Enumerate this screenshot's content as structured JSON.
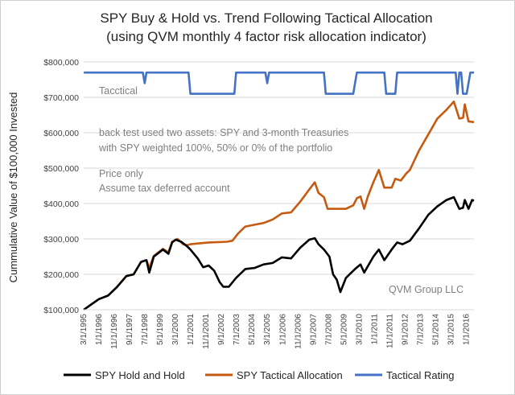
{
  "chart_data": {
    "type": "line",
    "title_lines": [
      "SPY Buy & Hold vs. Trend Following Tactical Allocation",
      "(using QVM monthly 4 factor risk allocation indicator)"
    ],
    "ylabel": "Cummulative Value of $100,000 Invested",
    "ylim": [
      100000,
      800000
    ],
    "y_ticks": [
      "$100,000",
      "$200,000",
      "$300,000",
      "$400,000",
      "$500,000",
      "$600,000",
      "$700,000",
      "$800,000"
    ],
    "y_tick_values": [
      100000,
      200000,
      300000,
      400000,
      500000,
      600000,
      700000,
      800000
    ],
    "x_start": 1995.167,
    "x_end": 2016.5,
    "x_ticks": [
      "3/1/1995",
      "1/1/1996",
      "11/1/1996",
      "9/1/1997",
      "7/1/1998",
      "5/1/1999",
      "3/1/2000",
      "1/1/2001",
      "11/1/2001",
      "9/1/2002",
      "7/1/2003",
      "5/1/2004",
      "3/1/2005",
      "1/1/2006",
      "11/1/2006",
      "9/1/2007",
      "7/1/2008",
      "5/1/2009",
      "3/1/2010",
      "1/1/2011",
      "11/1/2011",
      "9/1/2012",
      "7/1/2013",
      "5/1/2014",
      "3/1/2015",
      "1/1/2016"
    ],
    "legend_position": "bottom",
    "annotations": {
      "tactical_label": "Tacctical",
      "backtest_line1": "back test used two assets: SPY and 3-month Treasuries",
      "backtest_line2": "with SPY weighted 100%, 50% or 0% of the portfolio",
      "price_line1": "Price only",
      "price_line2": "Assume tax deferred account",
      "credit": "QVM Group LLC"
    },
    "series": [
      {
        "name": "SPY Hold and Hold",
        "color": "#000000",
        "points": [
          [
            1995.17,
            100000
          ],
          [
            1995.5,
            112000
          ],
          [
            1996.0,
            130000
          ],
          [
            1996.5,
            140000
          ],
          [
            1997.0,
            165000
          ],
          [
            1997.5,
            195000
          ],
          [
            1997.9,
            200000
          ],
          [
            1998.3,
            235000
          ],
          [
            1998.6,
            240000
          ],
          [
            1998.75,
            205000
          ],
          [
            1999.0,
            250000
          ],
          [
            1999.5,
            270000
          ],
          [
            1999.8,
            258000
          ],
          [
            2000.0,
            290000
          ],
          [
            2000.2,
            298000
          ],
          [
            2000.5,
            292000
          ],
          [
            2000.8,
            280000
          ],
          [
            2001.0,
            270000
          ],
          [
            2001.4,
            245000
          ],
          [
            2001.7,
            220000
          ],
          [
            2002.0,
            225000
          ],
          [
            2002.3,
            210000
          ],
          [
            2002.6,
            178000
          ],
          [
            2002.8,
            165000
          ],
          [
            2003.1,
            165000
          ],
          [
            2003.5,
            190000
          ],
          [
            2004.0,
            215000
          ],
          [
            2004.5,
            218000
          ],
          [
            2005.0,
            228000
          ],
          [
            2005.5,
            232000
          ],
          [
            2006.0,
            248000
          ],
          [
            2006.5,
            245000
          ],
          [
            2007.0,
            275000
          ],
          [
            2007.5,
            298000
          ],
          [
            2007.8,
            302000
          ],
          [
            2008.0,
            285000
          ],
          [
            2008.3,
            270000
          ],
          [
            2008.6,
            250000
          ],
          [
            2008.8,
            200000
          ],
          [
            2009.0,
            185000
          ],
          [
            2009.2,
            150000
          ],
          [
            2009.5,
            190000
          ],
          [
            2010.0,
            215000
          ],
          [
            2010.3,
            228000
          ],
          [
            2010.5,
            205000
          ],
          [
            2011.0,
            250000
          ],
          [
            2011.3,
            270000
          ],
          [
            2011.6,
            240000
          ],
          [
            2012.0,
            270000
          ],
          [
            2012.3,
            290000
          ],
          [
            2012.6,
            285000
          ],
          [
            2013.0,
            295000
          ],
          [
            2013.5,
            330000
          ],
          [
            2014.0,
            368000
          ],
          [
            2014.5,
            392000
          ],
          [
            2015.0,
            410000
          ],
          [
            2015.4,
            418000
          ],
          [
            2015.7,
            385000
          ],
          [
            2015.9,
            388000
          ],
          [
            2016.0,
            410000
          ],
          [
            2016.2,
            385000
          ],
          [
            2016.4,
            410000
          ],
          [
            2016.5,
            408000
          ]
        ]
      },
      {
        "name": "SPY Tactical Allocation",
        "color": "#c55a11",
        "points": [
          [
            1995.17,
            100000
          ],
          [
            1995.5,
            112000
          ],
          [
            1996.0,
            130000
          ],
          [
            1996.5,
            140000
          ],
          [
            1997.0,
            165000
          ],
          [
            1997.5,
            195000
          ],
          [
            1997.9,
            200000
          ],
          [
            1998.3,
            235000
          ],
          [
            1998.6,
            240000
          ],
          [
            1998.75,
            218000
          ],
          [
            1999.0,
            252000
          ],
          [
            1999.5,
            272000
          ],
          [
            1999.8,
            262000
          ],
          [
            2000.0,
            292000
          ],
          [
            2000.3,
            300000
          ],
          [
            2000.6,
            285000
          ],
          [
            2000.8,
            282000
          ],
          [
            2001.0,
            285000
          ],
          [
            2002.0,
            290000
          ],
          [
            2003.0,
            292000
          ],
          [
            2003.3,
            295000
          ],
          [
            2003.6,
            315000
          ],
          [
            2004.0,
            335000
          ],
          [
            2004.5,
            340000
          ],
          [
            2005.0,
            345000
          ],
          [
            2005.5,
            355000
          ],
          [
            2006.0,
            372000
          ],
          [
            2006.5,
            375000
          ],
          [
            2007.0,
            405000
          ],
          [
            2007.5,
            440000
          ],
          [
            2007.8,
            460000
          ],
          [
            2008.0,
            430000
          ],
          [
            2008.3,
            418000
          ],
          [
            2008.5,
            385000
          ],
          [
            2009.0,
            385000
          ],
          [
            2009.5,
            385000
          ],
          [
            2009.9,
            395000
          ],
          [
            2010.1,
            415000
          ],
          [
            2010.3,
            420000
          ],
          [
            2010.5,
            385000
          ],
          [
            2010.7,
            420000
          ],
          [
            2011.0,
            460000
          ],
          [
            2011.3,
            495000
          ],
          [
            2011.6,
            445000
          ],
          [
            2012.0,
            445000
          ],
          [
            2012.2,
            470000
          ],
          [
            2012.5,
            465000
          ],
          [
            2012.8,
            485000
          ],
          [
            2013.0,
            495000
          ],
          [
            2013.5,
            550000
          ],
          [
            2014.0,
            595000
          ],
          [
            2014.5,
            640000
          ],
          [
            2015.0,
            665000
          ],
          [
            2015.4,
            688000
          ],
          [
            2015.7,
            640000
          ],
          [
            2015.9,
            642000
          ],
          [
            2016.0,
            680000
          ],
          [
            2016.2,
            632000
          ],
          [
            2016.5,
            630000
          ]
        ]
      },
      {
        "name": "Tactical Rating",
        "color": "#4472c4",
        "points": [
          [
            1995.17,
            770000
          ],
          [
            1998.4,
            770000
          ],
          [
            1998.5,
            740000
          ],
          [
            1998.6,
            770000
          ],
          [
            2000.9,
            770000
          ],
          [
            2001.0,
            710000
          ],
          [
            2003.4,
            710000
          ],
          [
            2003.5,
            770000
          ],
          [
            2005.1,
            770000
          ],
          [
            2005.2,
            740000
          ],
          [
            2005.3,
            770000
          ],
          [
            2008.3,
            770000
          ],
          [
            2008.4,
            710000
          ],
          [
            2009.9,
            710000
          ],
          [
            2010.0,
            740000
          ],
          [
            2010.1,
            770000
          ],
          [
            2011.6,
            770000
          ],
          [
            2011.7,
            710000
          ],
          [
            2012.2,
            710000
          ],
          [
            2012.3,
            770000
          ],
          [
            2015.5,
            770000
          ],
          [
            2015.6,
            710000
          ],
          [
            2015.7,
            770000
          ],
          [
            2015.8,
            770000
          ],
          [
            2015.9,
            710000
          ],
          [
            2016.1,
            710000
          ],
          [
            2016.3,
            770000
          ],
          [
            2016.5,
            770000
          ]
        ]
      }
    ]
  }
}
